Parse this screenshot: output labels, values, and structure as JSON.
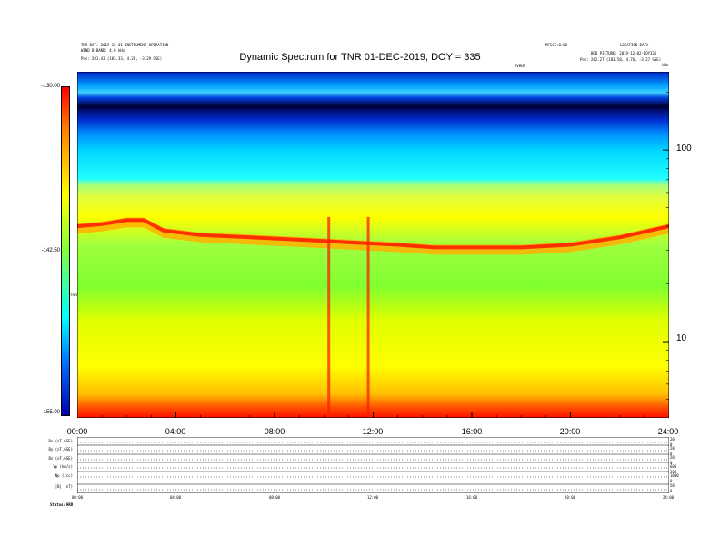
{
  "header": {
    "left_line1": "TNR DAT: 2019-12-01 INSTRUMENT OPERATION",
    "left_line2": "WIND B-BAND: 4.0 kHz",
    "left_line3": "Pos:  201.43 (183.33, 4.28, -3.29 GSE)",
    "mid_right": "MFSCS:0:00",
    "right_line1": "LOCATION DATA",
    "right_line2": "BGD_PICTURE: 2019-12-02-DOY336",
    "right_line3": "Pos:  202.27 (183.58, 4.76, -3.27 GSE)",
    "kHz_label": "kHz",
    "event_label": "EVENT"
  },
  "title": "Dynamic Spectrum for TNR 01-DEC-2019, DOY = 335",
  "colorbar": {
    "top_label": "-130.00",
    "mid_label": "-142.50",
    "bottom_label": "-155.00",
    "unit": "TNR"
  },
  "x_axis": {
    "ticks": [
      "00:00",
      "04:00",
      "08:00",
      "12:00",
      "16:00",
      "20:00",
      "24:00"
    ]
  },
  "y_axis": {
    "ticks": [
      "100",
      "10"
    ]
  },
  "bottom_panels": {
    "labels": [
      "Bx (nT,GSE)",
      "By (nT,GSE)",
      "Bz (nT,GSE)",
      "Vp (km/s)",
      "Np (/cc)",
      "|B| (nT)"
    ],
    "right_labels": [
      "20",
      "0",
      "20",
      "0",
      "20",
      "0",
      "600",
      "300",
      "1000",
      "0",
      "50",
      "0"
    ],
    "time_ticks": [
      "00:00",
      "04:00",
      "08:00",
      "12:00",
      "16:00",
      "20:00",
      "24:00"
    ],
    "status_label": "Status:",
    "status_value": "HRD"
  },
  "chart_data": {
    "type": "heatmap",
    "title": "Dynamic Spectrum for TNR 01-DEC-2019, DOY = 335",
    "xlabel": "",
    "ylabel": "",
    "x_range_hours": [
      0,
      24
    ],
    "y_range_khz": [
      4,
      256
    ],
    "y_scale": "log",
    "color_range": [
      -155.0,
      -130.0
    ],
    "colorbar_unit": "TNR",
    "colorbar_ticks": [
      -130.0,
      -142.5,
      -155.0
    ],
    "x_ticks": [
      "00:00",
      "04:00",
      "08:00",
      "12:00",
      "16:00",
      "20:00",
      "24:00"
    ],
    "y_ticks": [
      100,
      10
    ],
    "features": {
      "plasma_line_khz_curve": [
        {
          "t": 0.0,
          "f": 40
        },
        {
          "t": 1.0,
          "f": 41
        },
        {
          "t": 2.0,
          "f": 43
        },
        {
          "t": 2.7,
          "f": 43
        },
        {
          "t": 3.5,
          "f": 38
        },
        {
          "t": 5.0,
          "f": 36
        },
        {
          "t": 7.0,
          "f": 35
        },
        {
          "t": 9.0,
          "f": 34
        },
        {
          "t": 11.0,
          "f": 33
        },
        {
          "t": 13.0,
          "f": 32
        },
        {
          "t": 14.5,
          "f": 31
        },
        {
          "t": 16.0,
          "f": 31
        },
        {
          "t": 18.0,
          "f": 31
        },
        {
          "t": 20.0,
          "f": 32
        },
        {
          "t": 22.0,
          "f": 35
        },
        {
          "t": 24.0,
          "f": 40
        }
      ],
      "bursts_hours": [
        10.2,
        11.8
      ]
    },
    "grid": false,
    "legend": "left-colorbar"
  }
}
